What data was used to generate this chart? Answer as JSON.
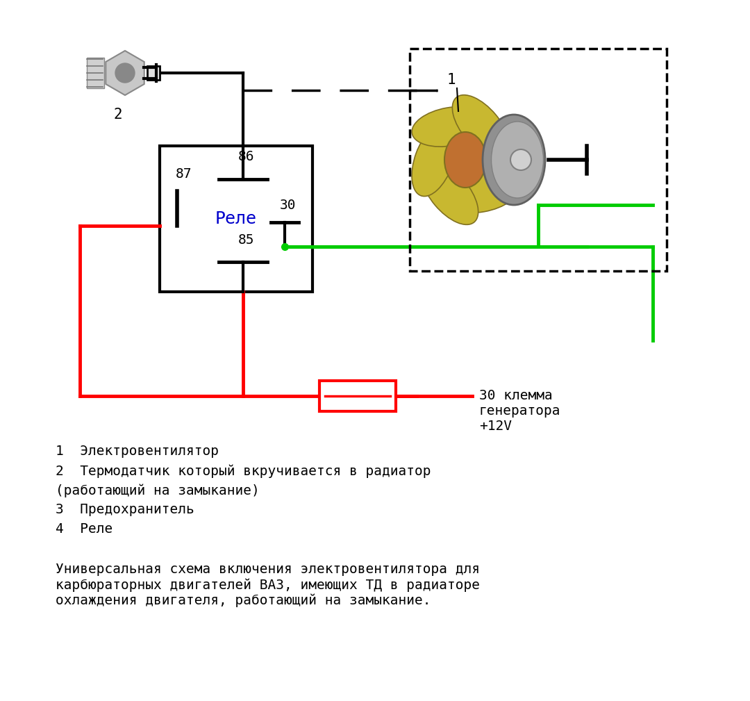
{
  "bg_color": "#ffffff",
  "relay_label": "Реле",
  "relay_label_color": "#0000cc",
  "pin86_label": "86",
  "pin87_label": "87",
  "pin30_label": "30",
  "pin85_label": "85",
  "label1": "1",
  "label2": "2",
  "text_lines": [
    "1  Электровентилятор",
    "2  Термодатчик который вкручивается в радиатор",
    "(работающий на замыкание)",
    "3  Предохранитель",
    "4  Реле"
  ],
  "bottom_text": "Универсальная схема включения электровентилятора для\nкарбюраторных двигателей ВАЗ, имеющих ТД в радиаторе\nохлаждения двигателя, работающий на замыкание.",
  "gen_label": "30 клемма\nгенератора\n+12V",
  "red_color": "#ff0000",
  "green_color": "#00cc00",
  "black_color": "#000000",
  "blade_color": "#c8b830",
  "motor_color": "#909090",
  "sensor_color": "#b0b0b0"
}
